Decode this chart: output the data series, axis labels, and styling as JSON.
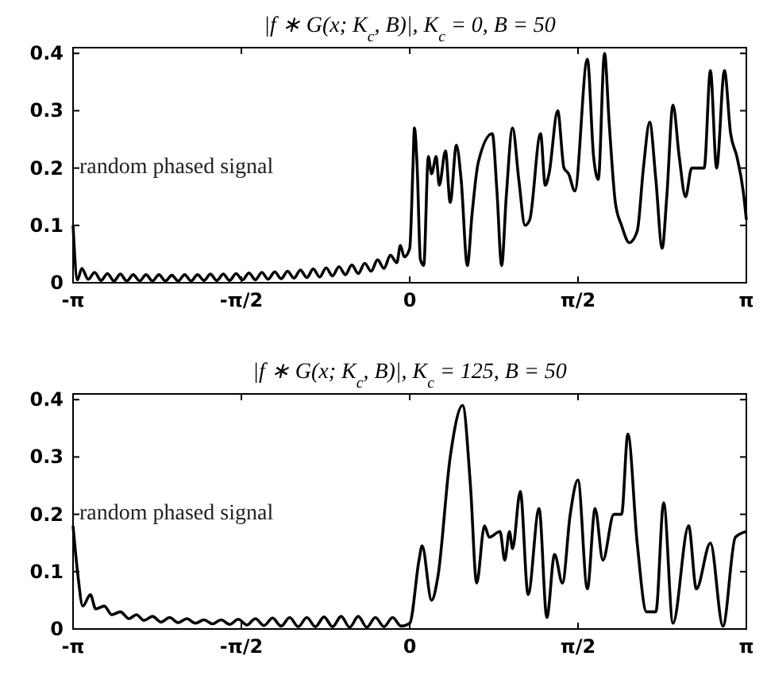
{
  "chart_data": [
    {
      "type": "line",
      "title": "|f ∗ G(x; K$_{c}$, B)|, K$_{c}$ = 0,  B = 50",
      "annotations": [
        "random phased signal"
      ],
      "xlim": [
        -3.1416,
        3.1416
      ],
      "ylim": [
        0,
        0.41
      ],
      "xticks": [
        {
          "value": -3.1416,
          "label": "-π"
        },
        {
          "value": -1.5708,
          "label": "-π/2"
        },
        0,
        {
          "value": 1.5708,
          "label": "π/2"
        },
        {
          "value": 3.1416,
          "label": "π"
        }
      ],
      "yticks": [
        0,
        0.1,
        0.2,
        0.3,
        0.4
      ],
      "grid": false,
      "marker": "none",
      "line_style": "solid",
      "series": [
        {
          "color": "#000000",
          "x": [
            -3.1416,
            -3.1,
            -3.06,
            -3.0,
            -2.94,
            -2.88,
            -2.82,
            -2.76,
            -2.7,
            -2.64,
            -2.58,
            -2.52,
            -2.46,
            -2.4,
            -2.34,
            -2.28,
            -2.22,
            -2.16,
            -2.1,
            -2.04,
            -1.98,
            -1.92,
            -1.86,
            -1.8,
            -1.74,
            -1.68,
            -1.62,
            -1.56,
            -1.5,
            -1.44,
            -1.38,
            -1.32,
            -1.26,
            -1.2,
            -1.14,
            -1.08,
            -1.02,
            -0.96,
            -0.9,
            -0.84,
            -0.78,
            -0.72,
            -0.66,
            -0.6,
            -0.54,
            -0.48,
            -0.42,
            -0.36,
            -0.3,
            -0.24,
            -0.18,
            -0.12,
            -0.087,
            -0.05,
            0,
            0.03,
            0.044,
            0.07,
            0.1,
            0.131,
            0.174,
            0.204,
            0.247,
            0.276,
            0.334,
            0.378,
            0.436,
            0.48,
            0.538,
            0.582,
            0.64,
            0.771,
            0.814,
            0.858,
            0.901,
            0.96,
            1.018,
            1.076,
            1.12,
            1.221,
            1.265,
            1.3,
            1.381,
            1.44,
            1.483,
            1.541,
            1.658,
            1.716,
            1.76,
            1.818,
            1.861,
            1.919,
            1.977,
            2.05,
            2.123,
            2.181,
            2.239,
            2.297,
            2.356,
            2.399,
            2.457,
            2.515,
            2.574,
            2.632,
            2.69,
            2.748,
            2.806,
            2.864,
            2.937,
            2.995,
            3.053,
            3.112,
            3.1416
          ],
          "values": [
            0.1,
            0.005,
            0.025,
            0.006,
            0.018,
            0.004,
            0.016,
            0.003,
            0.015,
            0.003,
            0.014,
            0.003,
            0.014,
            0.003,
            0.014,
            0.003,
            0.013,
            0.003,
            0.014,
            0.003,
            0.014,
            0.004,
            0.015,
            0.004,
            0.015,
            0.004,
            0.016,
            0.005,
            0.017,
            0.005,
            0.018,
            0.006,
            0.019,
            0.007,
            0.02,
            0.008,
            0.022,
            0.009,
            0.024,
            0.01,
            0.026,
            0.012,
            0.028,
            0.014,
            0.031,
            0.016,
            0.034,
            0.02,
            0.04,
            0.025,
            0.048,
            0.035,
            0.065,
            0.045,
            0.06,
            0.2,
            0.27,
            0.2,
            0.04,
            0.03,
            0.22,
            0.19,
            0.22,
            0.17,
            0.23,
            0.14,
            0.24,
            0.18,
            0.03,
            0.12,
            0.21,
            0.26,
            0.16,
            0.03,
            0.15,
            0.27,
            0.18,
            0.1,
            0.11,
            0.26,
            0.17,
            0.19,
            0.3,
            0.2,
            0.19,
            0.16,
            0.39,
            0.22,
            0.18,
            0.4,
            0.28,
            0.14,
            0.1,
            0.07,
            0.09,
            0.2,
            0.28,
            0.18,
            0.06,
            0.15,
            0.31,
            0.22,
            0.15,
            0.2,
            0.2,
            0.2,
            0.37,
            0.2,
            0.37,
            0.26,
            0.22,
            0.16,
            0.11
          ]
        }
      ]
    },
    {
      "type": "line",
      "title": "|f ∗ G(x; K$_{c}$, B)|, K$_{c}$ = 125,  B = 50",
      "annotations": [
        "random phased signal"
      ],
      "xlim": [
        -3.1416,
        3.1416
      ],
      "ylim": [
        0,
        0.41
      ],
      "xticks": [
        {
          "value": -3.1416,
          "label": "-π"
        },
        {
          "value": -1.5708,
          "label": "-π/2"
        },
        0,
        {
          "value": 1.5708,
          "label": "π/2"
        },
        {
          "value": 3.1416,
          "label": "π"
        }
      ],
      "yticks": [
        0,
        0.1,
        0.2,
        0.3,
        0.4
      ],
      "grid": false,
      "marker": "none",
      "line_style": "solid",
      "series": [
        {
          "color": "#000000",
          "x": [
            -3.1416,
            -3.1,
            -3.05,
            -2.98,
            -2.93,
            -2.85,
            -2.78,
            -2.7,
            -2.62,
            -2.55,
            -2.48,
            -2.4,
            -2.32,
            -2.24,
            -2.16,
            -2.08,
            -2.0,
            -1.92,
            -1.84,
            -1.76,
            -1.68,
            -1.6,
            -1.52,
            -1.44,
            -1.36,
            -1.28,
            -1.2,
            -1.12,
            -1.04,
            -0.96,
            -0.88,
            -0.8,
            -0.72,
            -0.64,
            -0.56,
            -0.48,
            -0.4,
            -0.32,
            -0.24,
            -0.16,
            -0.08,
            0,
            0.087,
            0.116,
            0.204,
            0.262,
            0.378,
            0.494,
            0.567,
            0.625,
            0.698,
            0.742,
            0.843,
            0.887,
            0.931,
            0.96,
            1.032,
            1.105,
            1.207,
            1.28,
            1.352,
            1.425,
            1.498,
            1.57,
            1.658,
            1.73,
            1.803,
            1.905,
            1.977,
            2.036,
            2.123,
            2.21,
            2.297,
            2.37,
            2.457,
            2.603,
            2.675,
            2.806,
            2.923,
            3.039,
            3.1416
          ],
          "values": [
            0.18,
            0.1,
            0.04,
            0.06,
            0.035,
            0.04,
            0.025,
            0.03,
            0.018,
            0.025,
            0.015,
            0.022,
            0.012,
            0.02,
            0.011,
            0.018,
            0.01,
            0.016,
            0.009,
            0.016,
            0.008,
            0.017,
            0.007,
            0.018,
            0.006,
            0.019,
            0.005,
            0.02,
            0.004,
            0.02,
            0.004,
            0.021,
            0.004,
            0.022,
            0.003,
            0.022,
            0.003,
            0.02,
            0.004,
            0.02,
            0.005,
            0.01,
            0.12,
            0.145,
            0.05,
            0.09,
            0.3,
            0.39,
            0.25,
            0.08,
            0.18,
            0.16,
            0.17,
            0.12,
            0.17,
            0.14,
            0.24,
            0.06,
            0.21,
            0.02,
            0.13,
            0.08,
            0.2,
            0.26,
            0.07,
            0.21,
            0.12,
            0.2,
            0.2,
            0.34,
            0.15,
            0.03,
            0.03,
            0.22,
            0.01,
            0.18,
            0.07,
            0.15,
            0.005,
            0.16,
            0.17
          ]
        }
      ]
    }
  ]
}
